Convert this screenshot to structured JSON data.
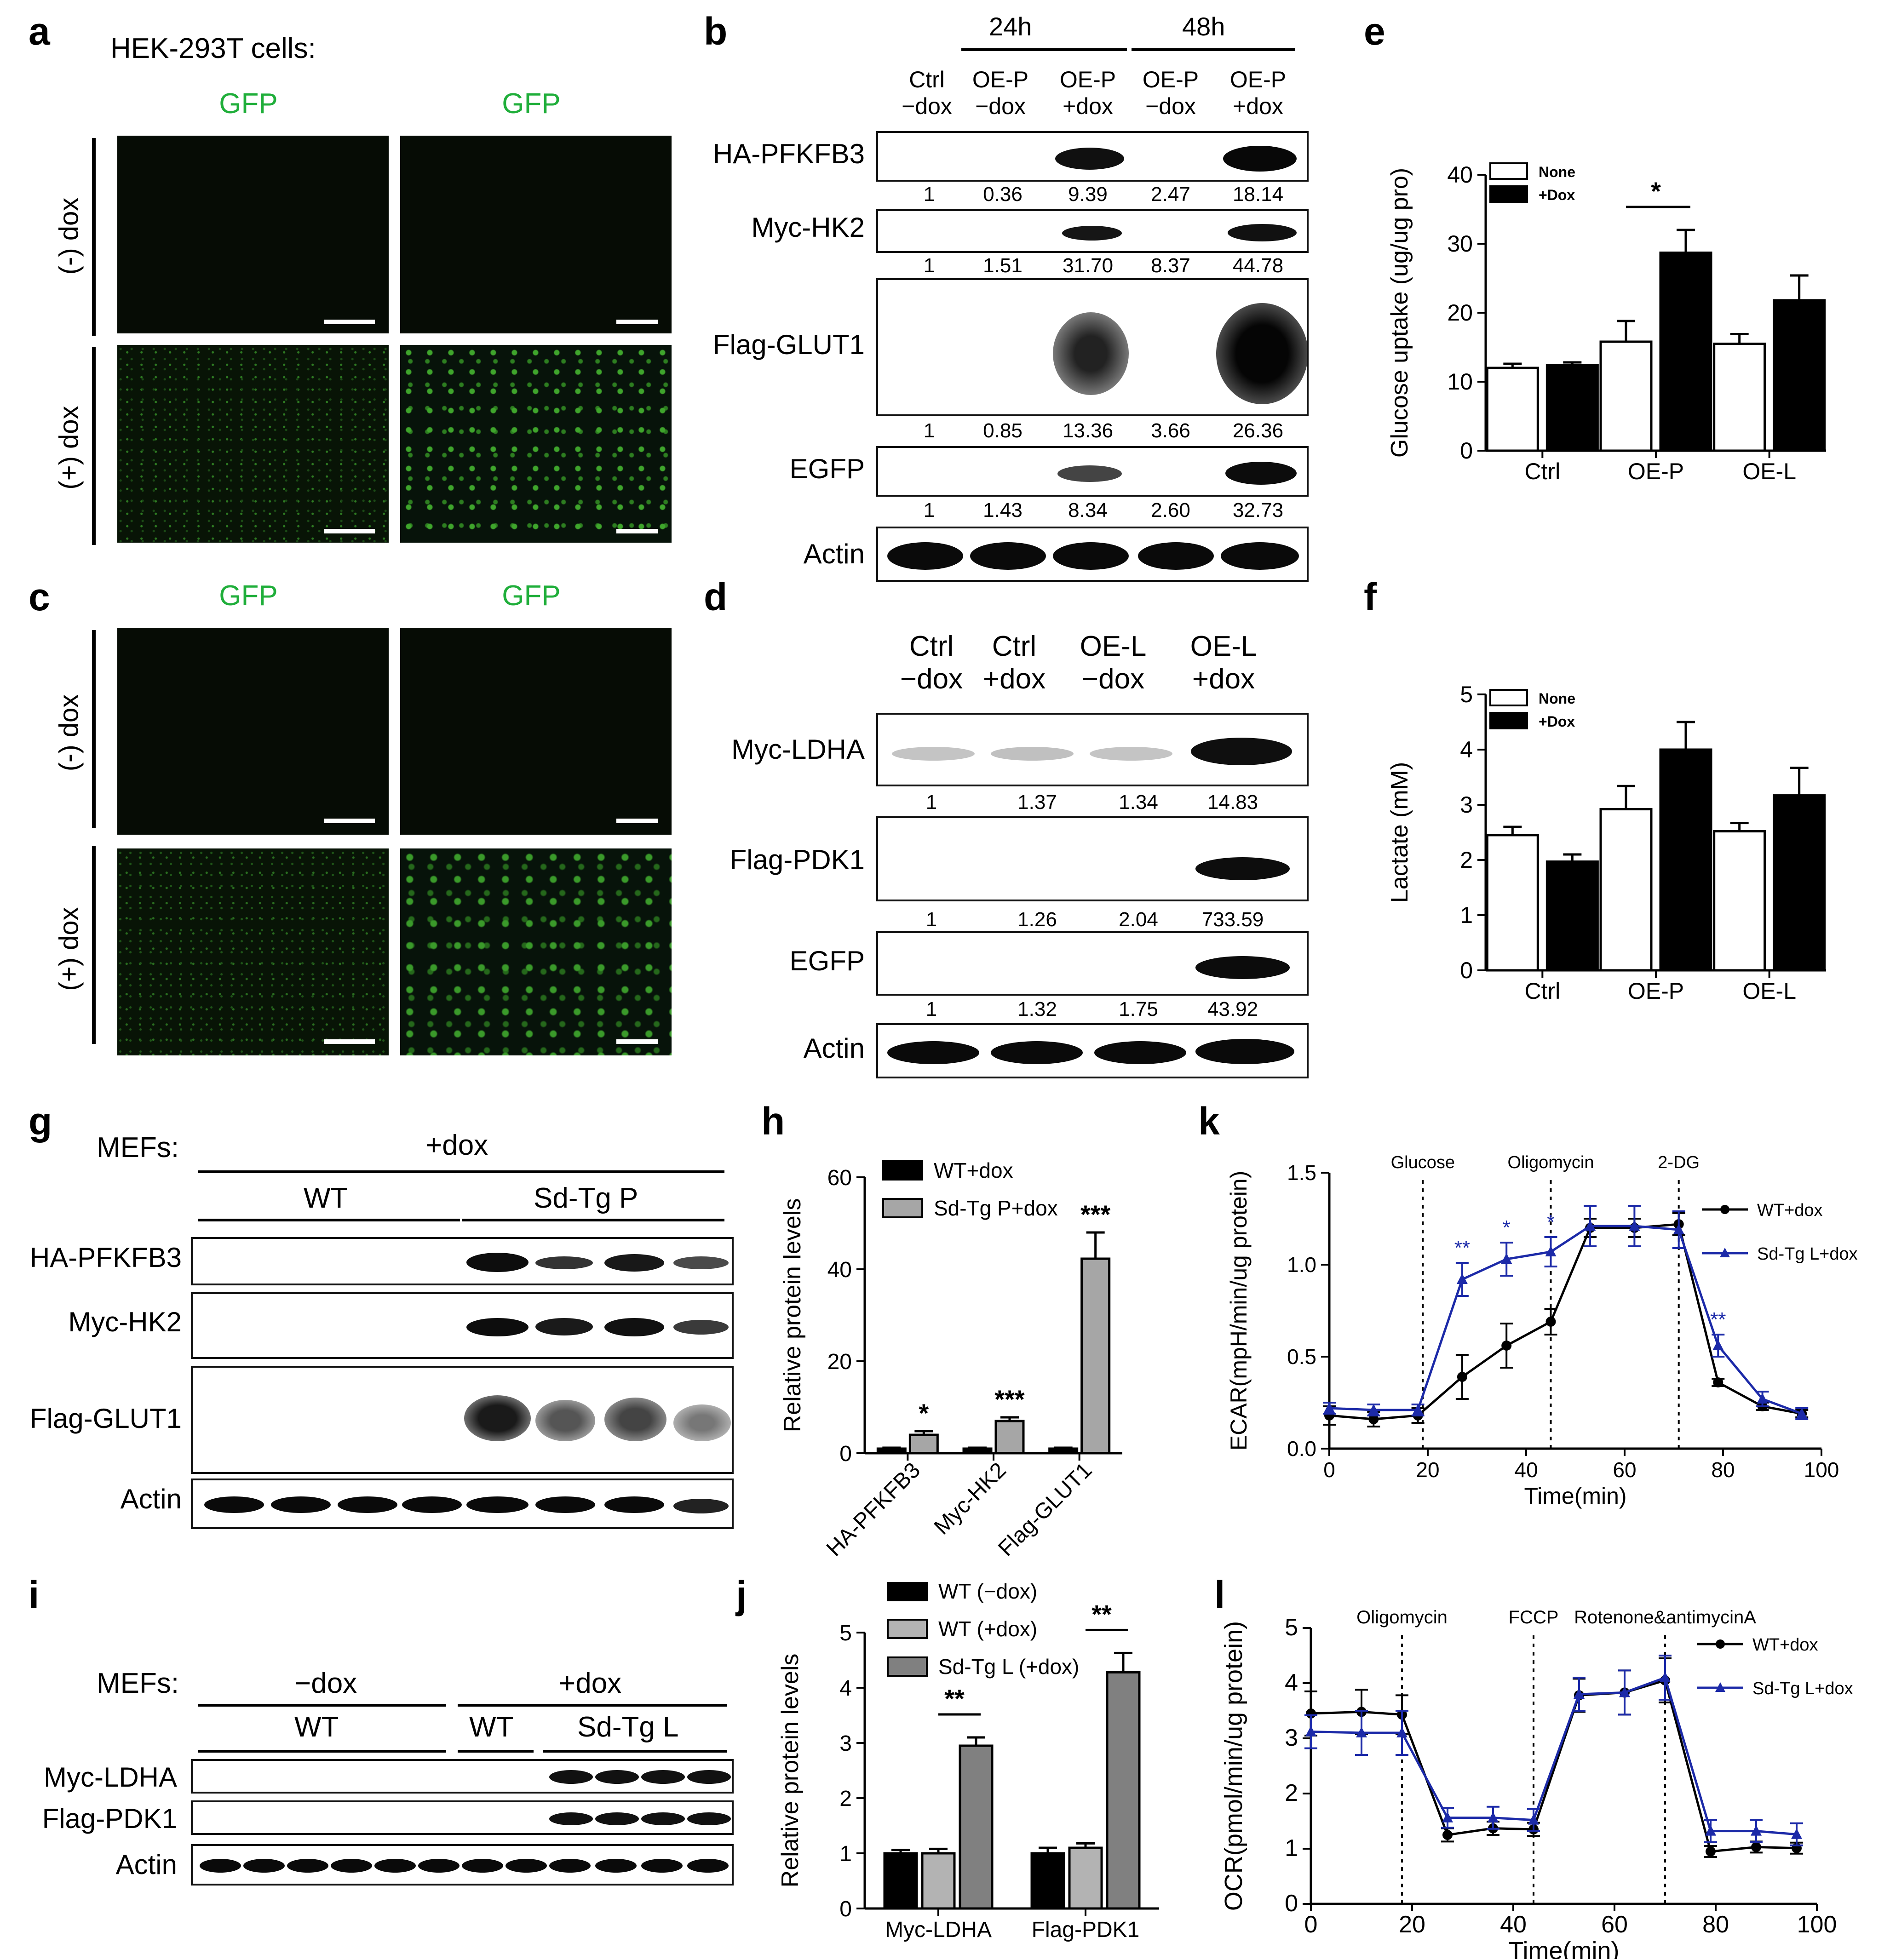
{
  "panels": {
    "a": {
      "letter": "a",
      "cell_type": "HEK-293T cells:",
      "channel_labels": [
        "GFP",
        "GFP"
      ],
      "row_labels": [
        "(-) dox",
        "(+) dox"
      ]
    },
    "b": {
      "letter": "b",
      "time_groups": [
        "24h",
        "48h"
      ],
      "lanes": [
        "Ctrl\n−dox",
        "OE-P\n−dox",
        "OE-P\n+dox",
        "OE-P\n−dox",
        "OE-P\n+dox"
      ],
      "blots": [
        {
          "name": "HA-PFKFB3",
          "values": [
            "1",
            "0.36",
            "9.39",
            "2.47",
            "18.14"
          ]
        },
        {
          "name": "Myc-HK2",
          "values": [
            "1",
            "1.51",
            "31.70",
            "8.37",
            "44.78"
          ]
        },
        {
          "name": "Flag-GLUT1",
          "values": [
            "1",
            "0.85",
            "13.36",
            "3.66",
            "26.36"
          ]
        },
        {
          "name": "EGFP",
          "values": [
            "1",
            "1.43",
            "8.34",
            "2.60",
            "32.73"
          ]
        },
        {
          "name": "Actin",
          "values": []
        }
      ]
    },
    "c": {
      "letter": "c",
      "channel_labels": [
        "GFP",
        "GFP"
      ],
      "row_labels": [
        "(-) dox",
        "(+) dox"
      ]
    },
    "d": {
      "letter": "d",
      "lanes": [
        "Ctrl\n−dox",
        "Ctrl\n+dox",
        "OE-L\n−dox",
        "OE-L\n+dox"
      ],
      "blots": [
        {
          "name": "Myc-LDHA",
          "values": [
            "1",
            "1.37",
            "1.34",
            "14.83"
          ]
        },
        {
          "name": "Flag-PDK1",
          "values": [
            "1",
            "1.26",
            "2.04",
            "733.59"
          ]
        },
        {
          "name": "EGFP",
          "values": [
            "1",
            "1.32",
            "1.75",
            "43.92"
          ]
        },
        {
          "name": "Actin",
          "values": []
        }
      ]
    },
    "g": {
      "letter": "g",
      "mefs": "MEFs:",
      "treatment": "+dox",
      "groups": [
        "WT",
        "Sd-Tg P"
      ],
      "blots": [
        "HA-PFKFB3",
        "Myc-HK2",
        "Flag-GLUT1",
        "Actin"
      ]
    },
    "i": {
      "letter": "i",
      "mefs": "MEFs:",
      "treatments": [
        "−dox",
        "+dox"
      ],
      "groups": [
        "WT",
        "WT",
        "Sd-Tg L"
      ],
      "blots": [
        "Myc-LDHA",
        "Flag-PDK1",
        "Actin"
      ]
    },
    "k_letter": "k",
    "l_letter": "l",
    "e_letter": "e",
    "f_letter": "f",
    "h_letter": "h",
    "j_letter": "j"
  },
  "chart_data": [
    {
      "id": "e",
      "type": "bar",
      "categories": [
        "Ctrl",
        "OE-P",
        "OE-L"
      ],
      "series": [
        {
          "name": "None",
          "values": [
            12.0,
            15.8,
            15.5
          ],
          "errors": [
            0.6,
            3.0,
            1.4
          ],
          "color": "#ffffff"
        },
        {
          "name": "+Dox",
          "values": [
            12.4,
            28.7,
            21.8
          ],
          "errors": [
            0.4,
            3.3,
            3.6
          ],
          "color": "#000000"
        }
      ],
      "ylabel": "Glucose uptake (ug/ug pro)",
      "ylim": [
        0,
        40
      ],
      "yticks": [
        0,
        10,
        20,
        30,
        40
      ],
      "significance": [
        {
          "category": "OE-P",
          "label": "*"
        }
      ],
      "legend": "top-left"
    },
    {
      "id": "f",
      "type": "bar",
      "categories": [
        "Ctrl",
        "OE-P",
        "OE-L"
      ],
      "series": [
        {
          "name": "None",
          "values": [
            2.45,
            2.92,
            2.52
          ],
          "errors": [
            0.15,
            0.42,
            0.15
          ],
          "color": "#ffffff"
        },
        {
          "name": "+Dox",
          "values": [
            1.97,
            4.0,
            3.17
          ],
          "errors": [
            0.13,
            0.5,
            0.5
          ],
          "color": "#000000"
        }
      ],
      "ylabel": "Lactate (mM)",
      "ylim": [
        0,
        5
      ],
      "yticks": [
        0,
        1,
        2,
        3,
        4,
        5
      ],
      "legend": "top-left"
    },
    {
      "id": "h",
      "type": "bar",
      "categories": [
        "HA-PFKFB3",
        "Myc-HK2",
        "Flag-GLUT1"
      ],
      "series": [
        {
          "name": "WT+dox",
          "values": [
            1.0,
            1.0,
            1.0
          ],
          "errors": [
            0.2,
            0.2,
            0.2
          ],
          "color": "#000000"
        },
        {
          "name": "Sd-Tg P+dox",
          "values": [
            4.0,
            7.0,
            42.3
          ],
          "errors": [
            0.8,
            0.8,
            5.7
          ],
          "color": "#a6a6a6"
        }
      ],
      "ylabel": "Relative protein levels",
      "ylim": [
        0,
        60
      ],
      "yticks": [
        0,
        20,
        40,
        60
      ],
      "significance": [
        {
          "category": "HA-PFKFB3",
          "label": "*"
        },
        {
          "category": "Myc-HK2",
          "label": "***"
        },
        {
          "category": "Flag-GLUT1",
          "label": "***"
        }
      ],
      "legend": "top-left"
    },
    {
      "id": "j",
      "type": "bar",
      "categories": [
        "Myc-LDHA",
        "Flag-PDK1"
      ],
      "series": [
        {
          "name": "WT (−dox)",
          "values": [
            1.0,
            1.0
          ],
          "errors": [
            0.06,
            0.1
          ],
          "color": "#000000"
        },
        {
          "name": "WT (+dox)",
          "values": [
            1.0,
            1.1
          ],
          "errors": [
            0.08,
            0.08
          ],
          "color": "#b3b3b3"
        },
        {
          "name": "Sd-Tg L (+dox)",
          "values": [
            2.95,
            4.28
          ],
          "errors": [
            0.15,
            0.35
          ],
          "color": "#808080"
        }
      ],
      "ylabel": "Relative protein levels",
      "ylim": [
        0,
        5
      ],
      "yticks": [
        0,
        1,
        2,
        3,
        4,
        5
      ],
      "significance": [
        {
          "category": "Myc-LDHA",
          "label": "**"
        },
        {
          "category": "Flag-PDK1",
          "label": "**"
        }
      ],
      "legend": "top-left"
    },
    {
      "id": "k",
      "type": "line",
      "x": [
        0,
        9,
        18,
        27,
        36,
        45,
        53,
        62,
        71,
        79,
        88,
        96
      ],
      "series": [
        {
          "name": "WT+dox",
          "values": [
            0.18,
            0.16,
            0.18,
            0.39,
            0.56,
            0.69,
            1.2,
            1.2,
            1.22,
            0.36,
            0.23,
            0.19
          ],
          "errors": [
            0.05,
            0.04,
            0.04,
            0.12,
            0.12,
            0.07,
            0.05,
            0.05,
            0.06,
            0.02,
            0.02,
            0.02
          ],
          "color": "#000000",
          "marker": "circle"
        },
        {
          "name": "Sd-Tg L+dox",
          "values": [
            0.22,
            0.21,
            0.21,
            0.92,
            1.03,
            1.07,
            1.21,
            1.21,
            1.19,
            0.56,
            0.27,
            0.19
          ],
          "errors": [
            0.03,
            0.03,
            0.03,
            0.09,
            0.09,
            0.08,
            0.11,
            0.11,
            0.1,
            0.06,
            0.04,
            0.03
          ],
          "color": "#1c2aa8",
          "marker": "triangle"
        }
      ],
      "xlabel": "Time(min)",
      "ylabel": "ECAR(mpH/min/ug protein)",
      "xlim": [
        0,
        100
      ],
      "ylim": [
        0,
        1.5
      ],
      "xticks": [
        0,
        20,
        40,
        60,
        80,
        100
      ],
      "yticks": [
        0.0,
        0.5,
        1.0,
        1.5
      ],
      "annotations": [
        {
          "x": 19,
          "label": "Glucose"
        },
        {
          "x": 45,
          "label": "Oligomycin"
        },
        {
          "x": 71,
          "label": "2-DG"
        }
      ],
      "significance": [
        {
          "x": 27,
          "label": "**"
        },
        {
          "x": 36,
          "label": "*"
        },
        {
          "x": 45,
          "label": "*"
        },
        {
          "x": 79,
          "label": "**"
        }
      ],
      "legend": "right"
    },
    {
      "id": "l",
      "type": "line",
      "x": [
        0,
        10,
        18,
        27,
        36,
        44,
        53,
        62,
        70,
        79,
        88,
        96
      ],
      "series": [
        {
          "name": "WT+dox",
          "values": [
            3.45,
            3.48,
            3.43,
            1.25,
            1.37,
            1.35,
            3.78,
            3.83,
            4.05,
            0.95,
            1.03,
            1.01
          ],
          "errors": [
            0.4,
            0.4,
            0.35,
            0.12,
            0.12,
            0.12,
            0.3,
            0.4,
            0.4,
            0.1,
            0.1,
            0.1
          ],
          "color": "#000000",
          "marker": "circle"
        },
        {
          "name": "Sd-Tg L+dox",
          "values": [
            3.12,
            3.1,
            3.1,
            1.56,
            1.56,
            1.52,
            3.8,
            3.83,
            4.1,
            1.32,
            1.32,
            1.26
          ],
          "errors": [
            0.3,
            0.4,
            0.4,
            0.18,
            0.2,
            0.2,
            0.3,
            0.4,
            0.4,
            0.2,
            0.2,
            0.2
          ],
          "color": "#1c2aa8",
          "marker": "triangle"
        }
      ],
      "xlabel": "Time(min)",
      "ylabel": "OCR(pmol/min/ug protein)",
      "xlim": [
        0,
        100
      ],
      "ylim": [
        0,
        5
      ],
      "xticks": [
        0,
        20,
        40,
        60,
        80,
        100
      ],
      "yticks": [
        0,
        1,
        2,
        3,
        4,
        5
      ],
      "annotations": [
        {
          "x": 18,
          "label": "Oligomycin"
        },
        {
          "x": 44,
          "label": "FCCP"
        },
        {
          "x": 70,
          "label": "Rotenone&antimycinA"
        }
      ],
      "legend": "right"
    }
  ]
}
